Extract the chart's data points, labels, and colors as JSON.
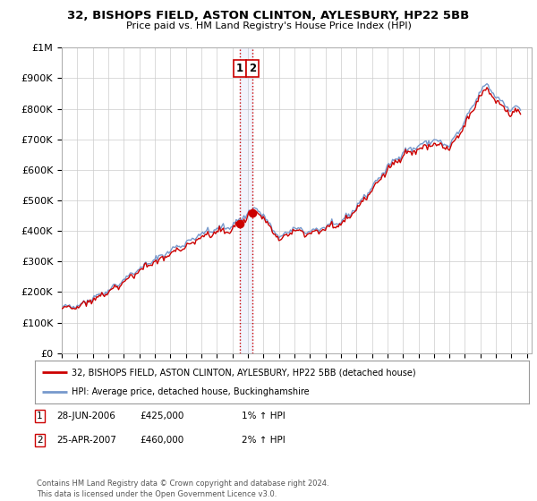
{
  "title1": "32, BISHOPS FIELD, ASTON CLINTON, AYLESBURY, HP22 5BB",
  "title2": "Price paid vs. HM Land Registry's House Price Index (HPI)",
  "xlim": [
    1995.0,
    2025.3
  ],
  "ylim": [
    0,
    1000000
  ],
  "yticks": [
    0,
    100000,
    200000,
    300000,
    400000,
    500000,
    600000,
    700000,
    800000,
    900000,
    1000000
  ],
  "ytick_labels": [
    "£0",
    "£100K",
    "£200K",
    "£300K",
    "£400K",
    "£500K",
    "£600K",
    "£700K",
    "£800K",
    "£900K",
    "£1M"
  ],
  "sale1_x": 2006.486,
  "sale1_y": 425000,
  "sale2_x": 2007.319,
  "sale2_y": 460000,
  "sale1_label": "1",
  "sale2_label": "2",
  "vline1_color": "#cc0000",
  "vline2_color": "#aabbdd",
  "vline_style": ":",
  "property_line_color": "#cc0000",
  "hpi_line_color": "#7799cc",
  "legend_property": "32, BISHOPS FIELD, ASTON CLINTON, AYLESBURY, HP22 5BB (detached house)",
  "legend_hpi": "HPI: Average price, detached house, Buckinghamshire",
  "annotation1_date": "28-JUN-2006",
  "annotation1_price": "£425,000",
  "annotation1_hpi": "1% ↑ HPI",
  "annotation2_date": "25-APR-2007",
  "annotation2_price": "£460,000",
  "annotation2_hpi": "2% ↑ HPI",
  "footer": "Contains HM Land Registry data © Crown copyright and database right 2024.\nThis data is licensed under the Open Government Licence v3.0.",
  "background_color": "#ffffff",
  "grid_color": "#cccccc"
}
